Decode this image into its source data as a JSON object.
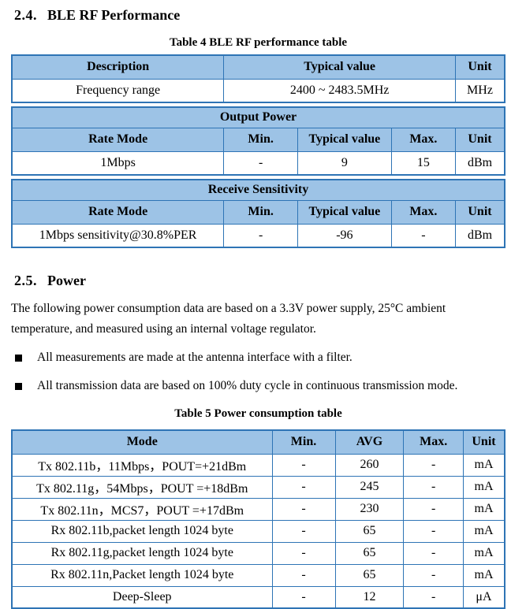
{
  "colors": {
    "table_header_fill": "#9DC3E6",
    "table_border": "#2E74B5",
    "text": "#000000",
    "page_background": "#FFFFFF"
  },
  "section_ble": {
    "number": "2.4.",
    "title": "BLE RF Performance"
  },
  "table4": {
    "caption": "Table 4 BLE RF performance table",
    "part1": {
      "headers": [
        "Description",
        "Typical value",
        "Unit"
      ],
      "row": [
        "Frequency range",
        "2400 ~ 2483.5MHz",
        "MHz"
      ]
    },
    "output_power": {
      "band": "Output Power",
      "headers": [
        "Rate Mode",
        "Min.",
        "Typical value",
        "Max.",
        "Unit"
      ],
      "row": [
        "1Mbps",
        "-",
        "9",
        "15",
        "dBm"
      ]
    },
    "receive_sensitivity": {
      "band": "Receive Sensitivity",
      "headers": [
        "Rate Mode",
        "Min.",
        "Typical value",
        "Max.",
        "Unit"
      ],
      "row": [
        "1Mbps sensitivity@30.8%PER",
        "-",
        "-96",
        "-",
        "dBm"
      ]
    }
  },
  "section_power": {
    "number": "2.5.",
    "title": "Power",
    "paragraph": "The following power consumption data are based on a 3.3V power supply, 25°C ambient temperature, and measured using an internal voltage regulator.",
    "bullets": [
      "All measurements are made at the antenna interface with a filter.",
      "All transmission data are based on 100% duty cycle in continuous transmission mode."
    ]
  },
  "table5": {
    "caption": "Table 5 Power consumption table",
    "headers": [
      "Mode",
      "Min.",
      "AVG",
      "Max.",
      "Unit"
    ],
    "rows": [
      [
        "Tx 802.11b，11Mbps，POUT=+21dBm",
        "-",
        "260",
        "-",
        "mA"
      ],
      [
        "Tx 802.11g，54Mbps，POUT =+18dBm",
        "-",
        "245",
        "-",
        "mA"
      ],
      [
        "Tx 802.11n，MCS7，POUT =+17dBm",
        "-",
        "230",
        "-",
        "mA"
      ],
      [
        "Rx 802.11b,packet length 1024 byte",
        "-",
        "65",
        "-",
        "mA"
      ],
      [
        "Rx 802.11g,packet length 1024 byte",
        "-",
        "65",
        "-",
        "mA"
      ],
      [
        "Rx 802.11n,Packet length 1024 byte",
        "-",
        "65",
        "-",
        "mA"
      ],
      [
        "Deep-Sleep",
        "-",
        "12",
        "-",
        "μA"
      ]
    ]
  }
}
